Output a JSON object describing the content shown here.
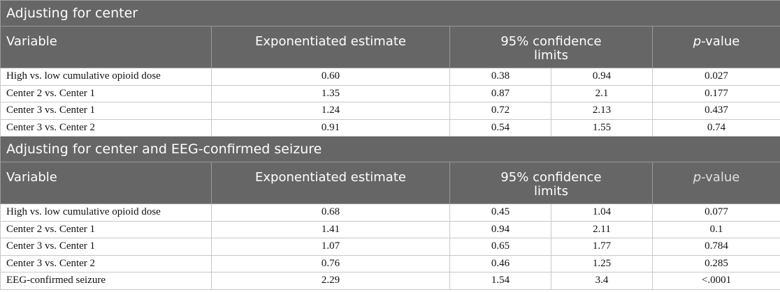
{
  "sections": [
    {
      "title": "Adjusting for center",
      "headers": {
        "variable": "Variable",
        "estimate": "Exponentiated estimate",
        "ci": "95% confidence limits",
        "p_italic": "p",
        "p_rest": "-value"
      },
      "rows": [
        {
          "label": "High vs. low cumulative opioid dose",
          "est": "0.60",
          "lo": "0.38",
          "hi": "0.94",
          "p": "0.027"
        },
        {
          "label": "Center 2 vs. Center 1",
          "est": "1.35",
          "lo": "0.87",
          "hi": "2.1",
          "p": "0.177"
        },
        {
          "label": "Center 3 vs. Center 1",
          "est": "1.24",
          "lo": "0.72",
          "hi": "2.13",
          "p": "0.437"
        },
        {
          "label": "Center 3 vs. Center 2",
          "est": "0.91",
          "lo": "0.54",
          "hi": "1.55",
          "p": "0.74"
        }
      ]
    },
    {
      "title": "Adjusting for center and EEG-confirmed seizure",
      "headers": {
        "variable": "Variable",
        "estimate": "Exponentiated estimate",
        "ci": "95% confidence limits",
        "p_italic": "p",
        "p_rest": "-value"
      },
      "rows": [
        {
          "label": "High vs. low cumulative opioid dose",
          "est": "0.68",
          "lo": "0.45",
          "hi": "1.04",
          "p": "0.077"
        },
        {
          "label": "Center 2 vs. Center 1",
          "est": "1.41",
          "lo": "0.94",
          "hi": "2.11",
          "p": "0.1"
        },
        {
          "label": "Center 3 vs. Center 1",
          "est": "1.07",
          "lo": "0.65",
          "hi": "1.77",
          "p": "0.784"
        },
        {
          "label": "Center 3 vs. Center 2",
          "est": "0.76",
          "lo": "0.46",
          "hi": "1.25",
          "p": "0.285"
        },
        {
          "label": "EEG-confirmed seizure",
          "est": "2.29",
          "lo": "1.54",
          "hi": "3.4",
          "p": "<.0001"
        }
      ]
    }
  ],
  "colors": {
    "header_bg": "#666666",
    "header_text": "#ffffff",
    "border": "#c8c8c8"
  }
}
